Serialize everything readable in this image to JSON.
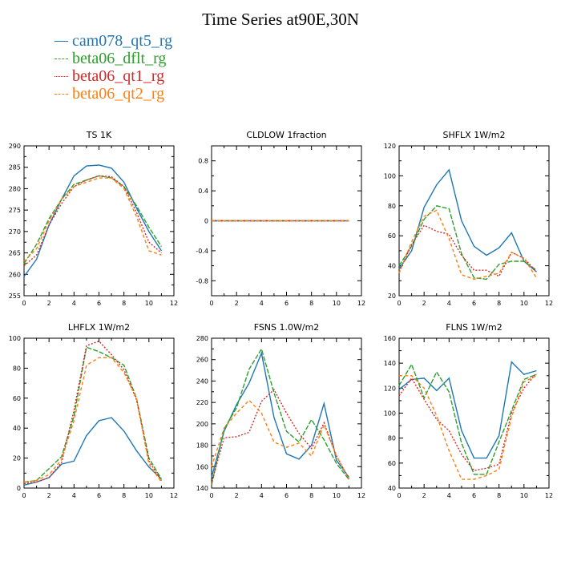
{
  "title": "Time Series at90E,30N",
  "legend": [
    {
      "label": "cam078_qt5_rg",
      "color": "#1f77b4",
      "dash": "solid"
    },
    {
      "label": "beta06_dflt_rg",
      "color": "#2ca02c",
      "dash": "longdash"
    },
    {
      "label": "beta06_qt1_rg",
      "color": "#d62728",
      "dash": "dot"
    },
    {
      "label": "beta06_qt2_rg",
      "color": "#ff7f0e",
      "dash": "dash"
    }
  ],
  "chart_data": [
    {
      "type": "line",
      "title": "TS   1K",
      "xlim": [
        0,
        12
      ],
      "ylim": [
        255,
        290
      ],
      "xticks": [
        0,
        2,
        4,
        6,
        8,
        10,
        12
      ],
      "yticks": [
        255,
        260,
        265,
        270,
        275,
        280,
        285,
        290
      ],
      "x": [
        0,
        1,
        2,
        3,
        4,
        5,
        6,
        7,
        8,
        9,
        10,
        11
      ],
      "series": [
        {
          "name": "cam078_qt5_rg",
          "values": [
            259.5,
            263.5,
            271.5,
            277.5,
            283.0,
            285.3,
            285.5,
            284.8,
            281.5,
            275.5,
            270.0,
            265.5
          ]
        },
        {
          "name": "beta06_dflt_rg",
          "values": [
            262.5,
            267.0,
            273.0,
            277.5,
            281.0,
            282.0,
            283.0,
            282.5,
            280.5,
            276.0,
            271.0,
            266.5
          ]
        },
        {
          "name": "beta06_qt1_rg",
          "values": [
            262.0,
            264.5,
            271.5,
            276.5,
            280.5,
            282.0,
            283.0,
            282.8,
            280.5,
            274.5,
            267.5,
            265.0
          ]
        },
        {
          "name": "beta06_qt2_rg",
          "values": [
            263.0,
            266.0,
            272.5,
            277.5,
            280.5,
            281.5,
            282.5,
            282.5,
            280.0,
            273.5,
            265.5,
            264.5
          ]
        }
      ]
    },
    {
      "type": "line",
      "title": "CLDLOW   1fraction",
      "xlim": [
        0,
        12
      ],
      "ylim": [
        -1,
        1
      ],
      "xticks": [
        0,
        2,
        4,
        6,
        8,
        10,
        12
      ],
      "yticks": [
        -0.8,
        -0.4,
        0.0,
        0.4,
        0.8
      ],
      "x": [
        0,
        1,
        2,
        3,
        4,
        5,
        6,
        7,
        8,
        9,
        10,
        11
      ],
      "series": [
        {
          "name": "cam078_qt5_rg",
          "values": [
            0,
            0,
            0,
            0,
            0,
            0,
            0,
            0,
            0,
            0,
            0,
            0
          ]
        },
        {
          "name": "beta06_dflt_rg",
          "values": [
            0,
            0,
            0,
            0,
            0,
            0,
            0,
            0,
            0,
            0,
            0,
            0
          ]
        },
        {
          "name": "beta06_qt1_rg",
          "values": [
            0,
            0,
            0,
            0,
            0,
            0,
            0,
            0,
            0,
            0,
            0,
            0
          ]
        },
        {
          "name": "beta06_qt2_rg",
          "values": [
            0,
            0,
            0,
            0,
            0,
            0,
            0,
            0,
            0,
            0,
            0,
            0
          ]
        }
      ]
    },
    {
      "type": "line",
      "title": "SHFLX   1W/m2",
      "xlim": [
        0,
        12
      ],
      "ylim": [
        20,
        120
      ],
      "xticks": [
        0,
        2,
        4,
        6,
        8,
        10,
        12
      ],
      "yticks": [
        20,
        40,
        60,
        80,
        100,
        120
      ],
      "x": [
        0,
        1,
        2,
        3,
        4,
        5,
        6,
        7,
        8,
        9,
        10,
        11
      ],
      "series": [
        {
          "name": "cam078_qt5_rg",
          "values": [
            38,
            50,
            79,
            94,
            104,
            70,
            53,
            47,
            52,
            62,
            43,
            36
          ]
        },
        {
          "name": "beta06_dflt_rg",
          "values": [
            40,
            53,
            71,
            80,
            78,
            48,
            32,
            31,
            41,
            43,
            43,
            37
          ]
        },
        {
          "name": "beta06_qt1_rg",
          "values": [
            36,
            54,
            67,
            63,
            61,
            47,
            37,
            37,
            33,
            49,
            45,
            36
          ]
        },
        {
          "name": "beta06_qt2_rg",
          "values": [
            35,
            56,
            73,
            77,
            58,
            34,
            31,
            33,
            35,
            49,
            45,
            32
          ]
        }
      ]
    },
    {
      "type": "line",
      "title": "LHFLX   1W/m2",
      "xlim": [
        0,
        12
      ],
      "ylim": [
        0,
        100
      ],
      "xticks": [
        0,
        2,
        4,
        6,
        8,
        10,
        12
      ],
      "yticks": [
        0,
        20,
        40,
        60,
        80,
        100
      ],
      "x": [
        0,
        1,
        2,
        3,
        4,
        5,
        6,
        7,
        8,
        9,
        10,
        11
      ],
      "series": [
        {
          "name": "cam078_qt5_rg",
          "values": [
            2,
            4,
            7,
            16,
            18,
            35,
            45,
            47,
            38,
            25,
            14,
            6
          ]
        },
        {
          "name": "beta06_dflt_rg",
          "values": [
            4,
            5,
            13,
            21,
            48,
            94,
            91,
            87,
            82,
            60,
            20,
            6
          ]
        },
        {
          "name": "beta06_qt1_rg",
          "values": [
            3,
            4,
            7,
            17,
            52,
            95,
            98,
            89,
            79,
            59,
            18,
            5
          ]
        },
        {
          "name": "beta06_qt2_rg",
          "values": [
            4,
            5,
            9,
            19,
            45,
            82,
            87,
            87,
            77,
            60,
            16,
            4
          ]
        }
      ]
    },
    {
      "type": "line",
      "title": "FSNS   1.0W/m2",
      "xlim": [
        0,
        12
      ],
      "ylim": [
        140,
        280
      ],
      "xticks": [
        0,
        2,
        4,
        6,
        8,
        10,
        12
      ],
      "yticks": [
        140,
        160,
        180,
        200,
        220,
        240,
        260,
        280
      ],
      "x": [
        0,
        1,
        2,
        3,
        4,
        5,
        6,
        7,
        8,
        9,
        10,
        11
      ],
      "series": [
        {
          "name": "cam078_qt5_rg",
          "values": [
            150,
            193,
            218,
            238,
            266,
            206,
            172,
            167,
            180,
            219,
            166,
            150
          ]
        },
        {
          "name": "beta06_dflt_rg",
          "values": [
            143,
            195,
            215,
            251,
            270,
            229,
            193,
            183,
            204,
            185,
            163,
            148
          ]
        },
        {
          "name": "beta06_qt1_rg",
          "values": [
            145,
            187,
            188,
            192,
            221,
            232,
            210,
            191,
            177,
            201,
            170,
            149
          ]
        },
        {
          "name": "beta06_qt2_rg",
          "values": [
            160,
            196,
            210,
            222,
            210,
            183,
            178,
            182,
            170,
            199,
            170,
            148
          ]
        }
      ]
    },
    {
      "type": "line",
      "title": "FLNS   1W/m2",
      "xlim": [
        0,
        12
      ],
      "ylim": [
        40,
        160
      ],
      "xticks": [
        0,
        2,
        4,
        6,
        8,
        10,
        12
      ],
      "yticks": [
        40,
        60,
        80,
        100,
        120,
        140,
        160
      ],
      "x": [
        0,
        1,
        2,
        3,
        4,
        5,
        6,
        7,
        8,
        9,
        10,
        11
      ],
      "series": [
        {
          "name": "cam078_qt5_rg",
          "values": [
            119,
            127,
            128,
            118,
            128,
            86,
            64,
            64,
            82,
            141,
            131,
            134
          ]
        },
        {
          "name": "beta06_dflt_rg",
          "values": [
            122,
            139,
            112,
            133,
            117,
            76,
            51,
            51,
            77,
            102,
            127,
            131
          ]
        },
        {
          "name": "beta06_qt1_rg",
          "values": [
            114,
            128,
            111,
            95,
            86,
            67,
            54,
            56,
            59,
            100,
            120,
            132
          ]
        },
        {
          "name": "beta06_qt2_rg",
          "values": [
            130,
            130,
            120,
            98,
            70,
            47,
            47,
            50,
            55,
            97,
            125,
            130
          ]
        }
      ]
    }
  ]
}
